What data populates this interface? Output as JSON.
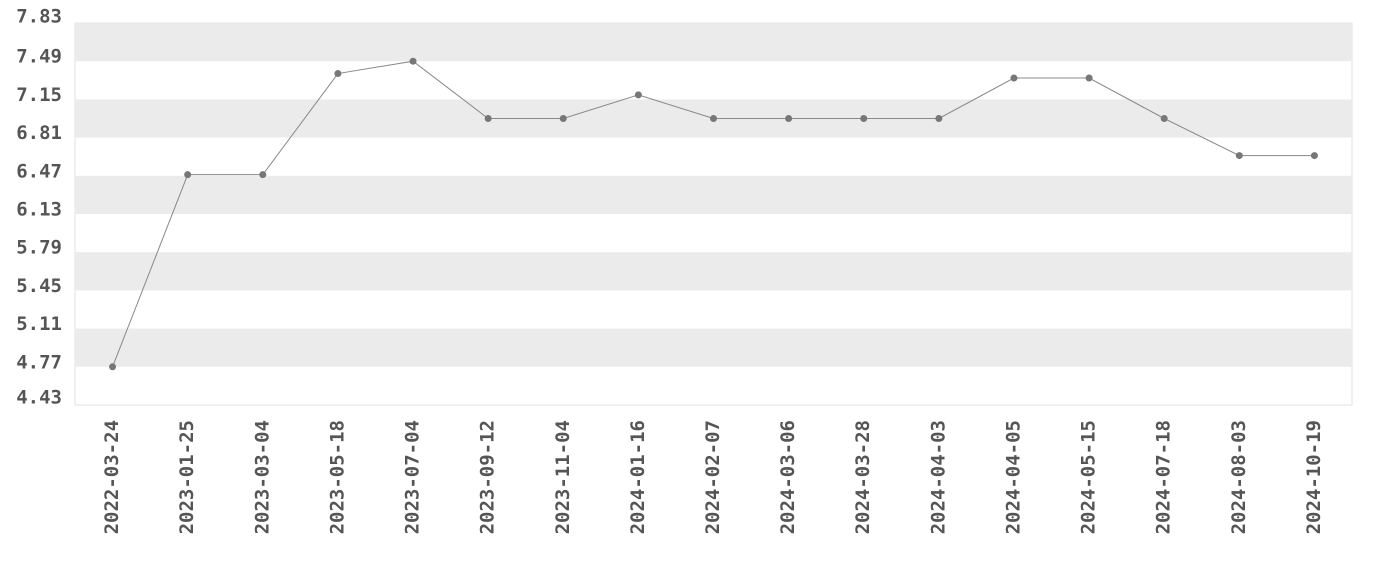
{
  "chart_data": {
    "type": "line",
    "x": [
      "2022-03-24",
      "2023-01-25",
      "2023-03-04",
      "2023-05-18",
      "2023-07-04",
      "2023-09-12",
      "2023-11-04",
      "2024-01-16",
      "2024-02-07",
      "2024-03-06",
      "2024-03-28",
      "2024-04-03",
      "2024-04-05",
      "2024-05-15",
      "2024-07-18",
      "2024-08-03",
      "2024-10-19"
    ],
    "values": [
      4.77,
      6.48,
      6.48,
      7.38,
      7.49,
      6.98,
      6.98,
      7.19,
      6.98,
      6.98,
      6.98,
      6.98,
      7.34,
      7.34,
      6.98,
      6.65,
      6.65
    ],
    "color": "#888888",
    "ylim": [
      4.43,
      7.83
    ],
    "yticks": [
      4.43,
      4.77,
      5.11,
      5.45,
      5.79,
      6.13,
      6.47,
      6.81,
      7.15,
      7.49,
      7.83
    ],
    "grid": "bands"
  }
}
